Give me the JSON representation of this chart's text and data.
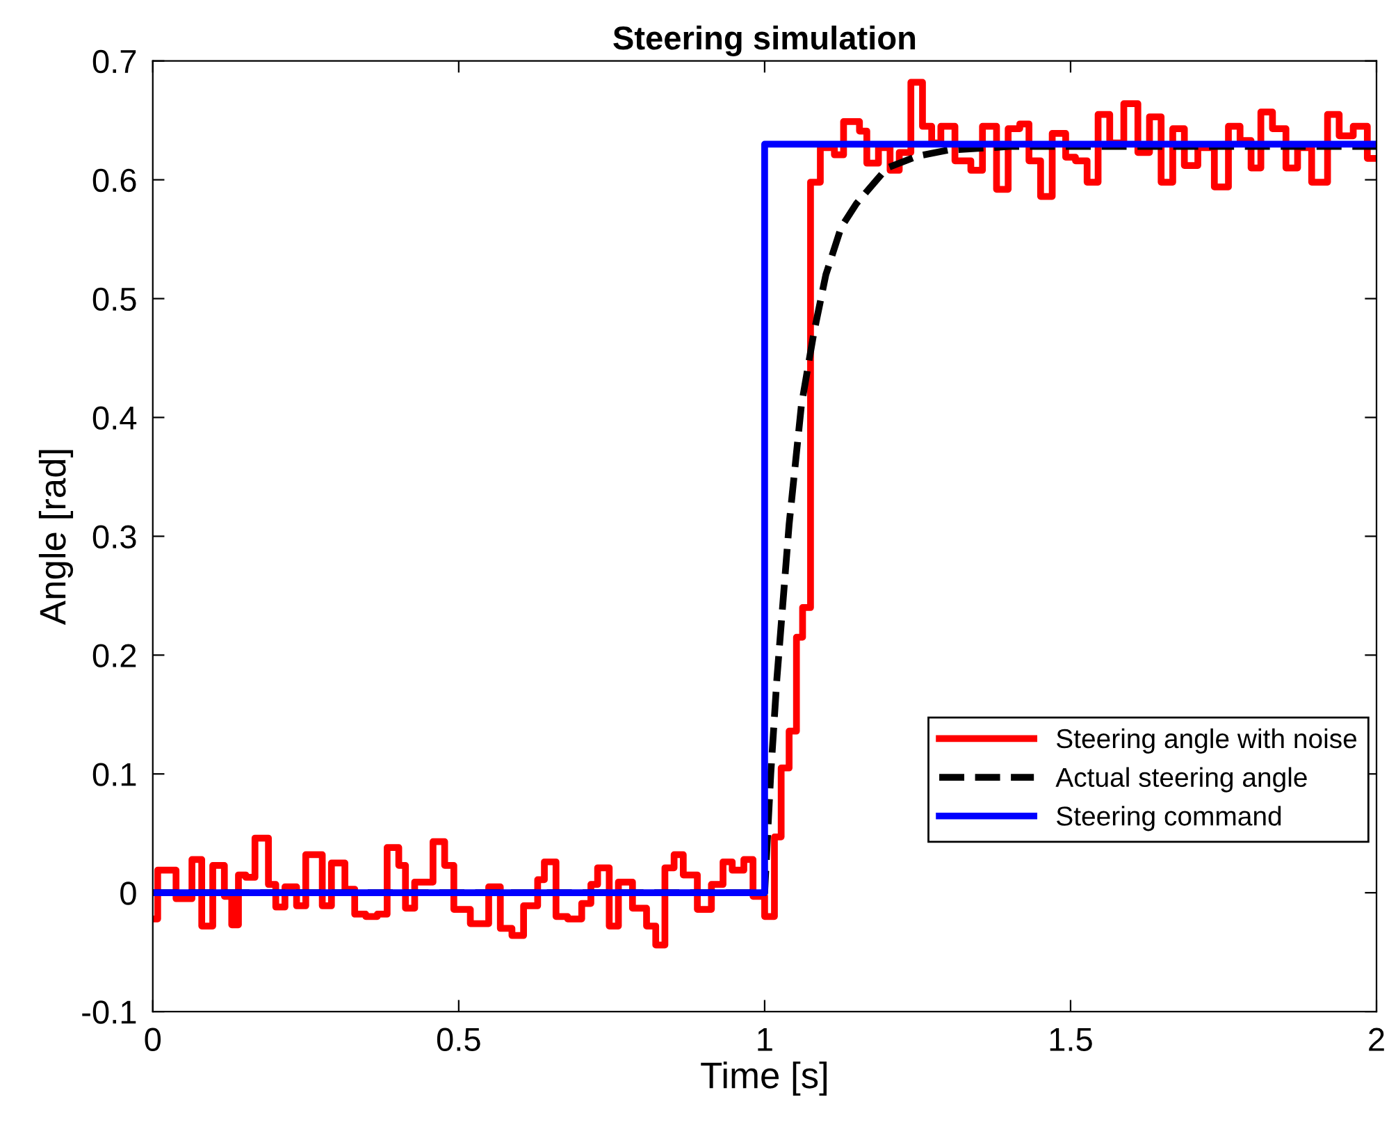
{
  "chart_data": {
    "type": "step",
    "title": "Steering simulation",
    "xlabel": "Time [s]",
    "ylabel": "Angle [rad]",
    "xlim": [
      0,
      2
    ],
    "ylim": [
      -0.1,
      0.7
    ],
    "xticks": [
      0,
      0.5,
      1,
      1.5,
      2
    ],
    "yticks": [
      -0.1,
      0,
      0.1,
      0.2,
      0.3,
      0.4,
      0.5,
      0.6,
      0.7
    ],
    "grid": false,
    "legend": "bottom right",
    "series": [
      {
        "name": "Steering angle with noise",
        "color": "#ff0000",
        "line_style": "solid",
        "x": [
          0,
          0.008,
          0.038,
          0.064,
          0.08,
          0.098,
          0.117,
          0.129,
          0.14,
          0.152,
          0.167,
          0.189,
          0.201,
          0.216,
          0.235,
          0.25,
          0.277,
          0.292,
          0.314,
          0.33,
          0.348,
          0.367,
          0.383,
          0.402,
          0.413,
          0.428,
          0.458,
          0.477,
          0.492,
          0.519,
          0.549,
          0.568,
          0.587,
          0.606,
          0.629,
          0.64,
          0.659,
          0.678,
          0.701,
          0.716,
          0.727,
          0.746,
          0.761,
          0.784,
          0.807,
          0.822,
          0.837,
          0.852,
          0.867,
          0.89,
          0.913,
          0.932,
          0.947,
          0.966,
          0.981,
          1.0,
          1.016,
          1.027,
          1.04,
          1.052,
          1.062,
          1.075,
          1.091,
          1.114,
          1.129,
          1.155,
          1.167,
          1.186,
          1.205,
          1.22,
          1.239,
          1.258,
          1.273,
          1.288,
          1.311,
          1.337,
          1.356,
          1.379,
          1.398,
          1.417,
          1.432,
          1.451,
          1.47,
          1.492,
          1.508,
          1.527,
          1.545,
          1.564,
          1.587,
          1.61,
          1.629,
          1.648,
          1.667,
          1.686,
          1.708,
          1.735,
          1.758,
          1.777,
          1.795,
          1.811,
          1.83,
          1.852,
          1.871,
          1.894,
          1.92,
          1.939,
          1.962,
          1.985,
          2.0
        ],
        "values": [
          -0.022,
          0.019,
          -0.005,
          0.028,
          -0.028,
          0.023,
          -0.003,
          -0.027,
          0.015,
          0.013,
          0.046,
          0.007,
          -0.012,
          0.005,
          -0.011,
          0.032,
          -0.011,
          0.025,
          0.003,
          -0.018,
          -0.02,
          -0.018,
          0.038,
          0.023,
          -0.013,
          0.009,
          0.043,
          0.023,
          -0.014,
          -0.026,
          0.005,
          -0.03,
          -0.036,
          -0.011,
          0.011,
          0.026,
          -0.02,
          -0.022,
          -0.009,
          0.007,
          0.021,
          -0.028,
          0.009,
          -0.013,
          -0.028,
          -0.044,
          0.021,
          0.032,
          0.015,
          -0.014,
          0.007,
          0.026,
          0.019,
          0.028,
          -0.003,
          -0.02,
          0.047,
          0.105,
          0.136,
          0.215,
          0.24,
          0.598,
          0.627,
          0.621,
          0.649,
          0.641,
          0.614,
          0.627,
          0.608,
          0.623,
          0.682,
          0.645,
          0.631,
          0.645,
          0.616,
          0.608,
          0.645,
          0.592,
          0.643,
          0.647,
          0.616,
          0.586,
          0.639,
          0.619,
          0.616,
          0.598,
          0.655,
          0.631,
          0.664,
          0.623,
          0.653,
          0.598,
          0.643,
          0.612,
          0.627,
          0.594,
          0.645,
          0.633,
          0.61,
          0.657,
          0.643,
          0.61,
          0.627,
          0.598,
          0.655,
          0.637,
          0.645,
          0.618,
          0.618
        ]
      },
      {
        "name": "Actual steering angle",
        "color": "#000000",
        "type": "line",
        "line_style": "dashed",
        "x": [
          0,
          1.0,
          1.01,
          1.02,
          1.04,
          1.06,
          1.08,
          1.1,
          1.125,
          1.15,
          1.2,
          1.25,
          1.3,
          1.4,
          2.0
        ],
        "values": [
          0,
          0,
          0.1,
          0.18,
          0.31,
          0.41,
          0.47,
          0.52,
          0.56,
          0.58,
          0.61,
          0.62,
          0.625,
          0.628,
          0.628
        ]
      },
      {
        "name": "Steering command",
        "color": "#0000ff",
        "line_style": "solid",
        "x": [
          0,
          1.0,
          2.0
        ],
        "values": [
          0,
          0.63,
          0.63
        ]
      }
    ]
  }
}
